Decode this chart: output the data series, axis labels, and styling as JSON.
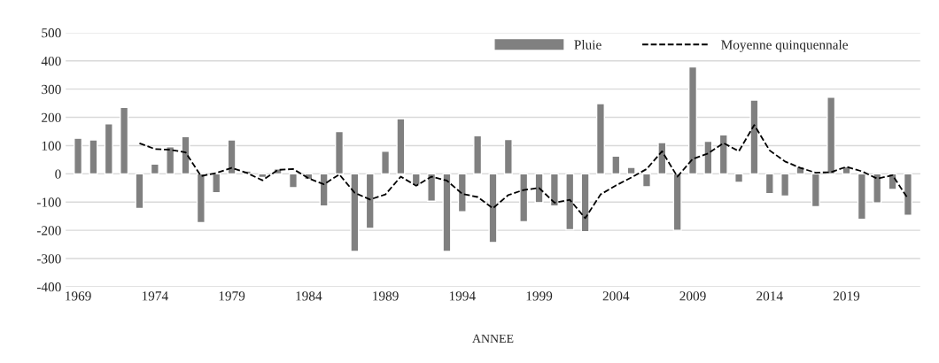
{
  "chart_data": {
    "type": "bar",
    "xlabel": "ANNEE",
    "categories": [
      "1969",
      null,
      null,
      null,
      null,
      "1974",
      null,
      null,
      null,
      null,
      "1979",
      null,
      null,
      null,
      null,
      "1984",
      null,
      null,
      null,
      null,
      "1989",
      null,
      null,
      null,
      null,
      "1994",
      null,
      null,
      null,
      null,
      "1999",
      null,
      null,
      null,
      null,
      "2004",
      null,
      null,
      null,
      null,
      "2009",
      null,
      null,
      null,
      null,
      "2014",
      null,
      null,
      null,
      null,
      "2019",
      null,
      null,
      null,
      null
    ],
    "series": [
      {
        "name": "Pluie",
        "color": "#808080",
        "values": [
          126,
          120,
          177,
          235,
          -123,
          35,
          96,
          132,
          -173,
          -67,
          120,
          10,
          -13,
          17,
          -49,
          -20,
          -114,
          150,
          -275,
          -193,
          80,
          195,
          -40,
          -97,
          -275,
          -134,
          135,
          -243,
          122,
          -170,
          -102,
          -114,
          -198,
          -205,
          249,
          63,
          23,
          -46,
          111,
          -200,
          379,
          115,
          138,
          -30,
          261,
          -70,
          -79,
          25,
          -116,
          271,
          25,
          -161,
          -103,
          -55,
          -147
        ]
      },
      {
        "name": "Moyenne quinquennale",
        "type": "line",
        "color": "#000000",
        "line_style": "dashed",
        "values": [
          null,
          null,
          null,
          null,
          108,
          88,
          85,
          76,
          -8,
          3,
          21,
          3,
          -23,
          14,
          17,
          -16,
          -37,
          -2,
          -67,
          -91,
          -73,
          -10,
          -42,
          -10,
          -24,
          -71,
          -82,
          -122,
          -75,
          -57,
          -50,
          -102,
          -92,
          -157,
          -73,
          -41,
          -13,
          17,
          80,
          -10,
          53,
          72,
          109,
          80,
          173,
          83,
          44,
          21,
          4,
          6,
          25,
          9,
          -17,
          -5,
          -88
        ]
      }
    ],
    "ylim": [
      -400,
      500
    ],
    "yticks": [
      -400,
      -300,
      -200,
      -100,
      0,
      100,
      200,
      300,
      400,
      500
    ],
    "grid": "y",
    "legend": "top right"
  }
}
